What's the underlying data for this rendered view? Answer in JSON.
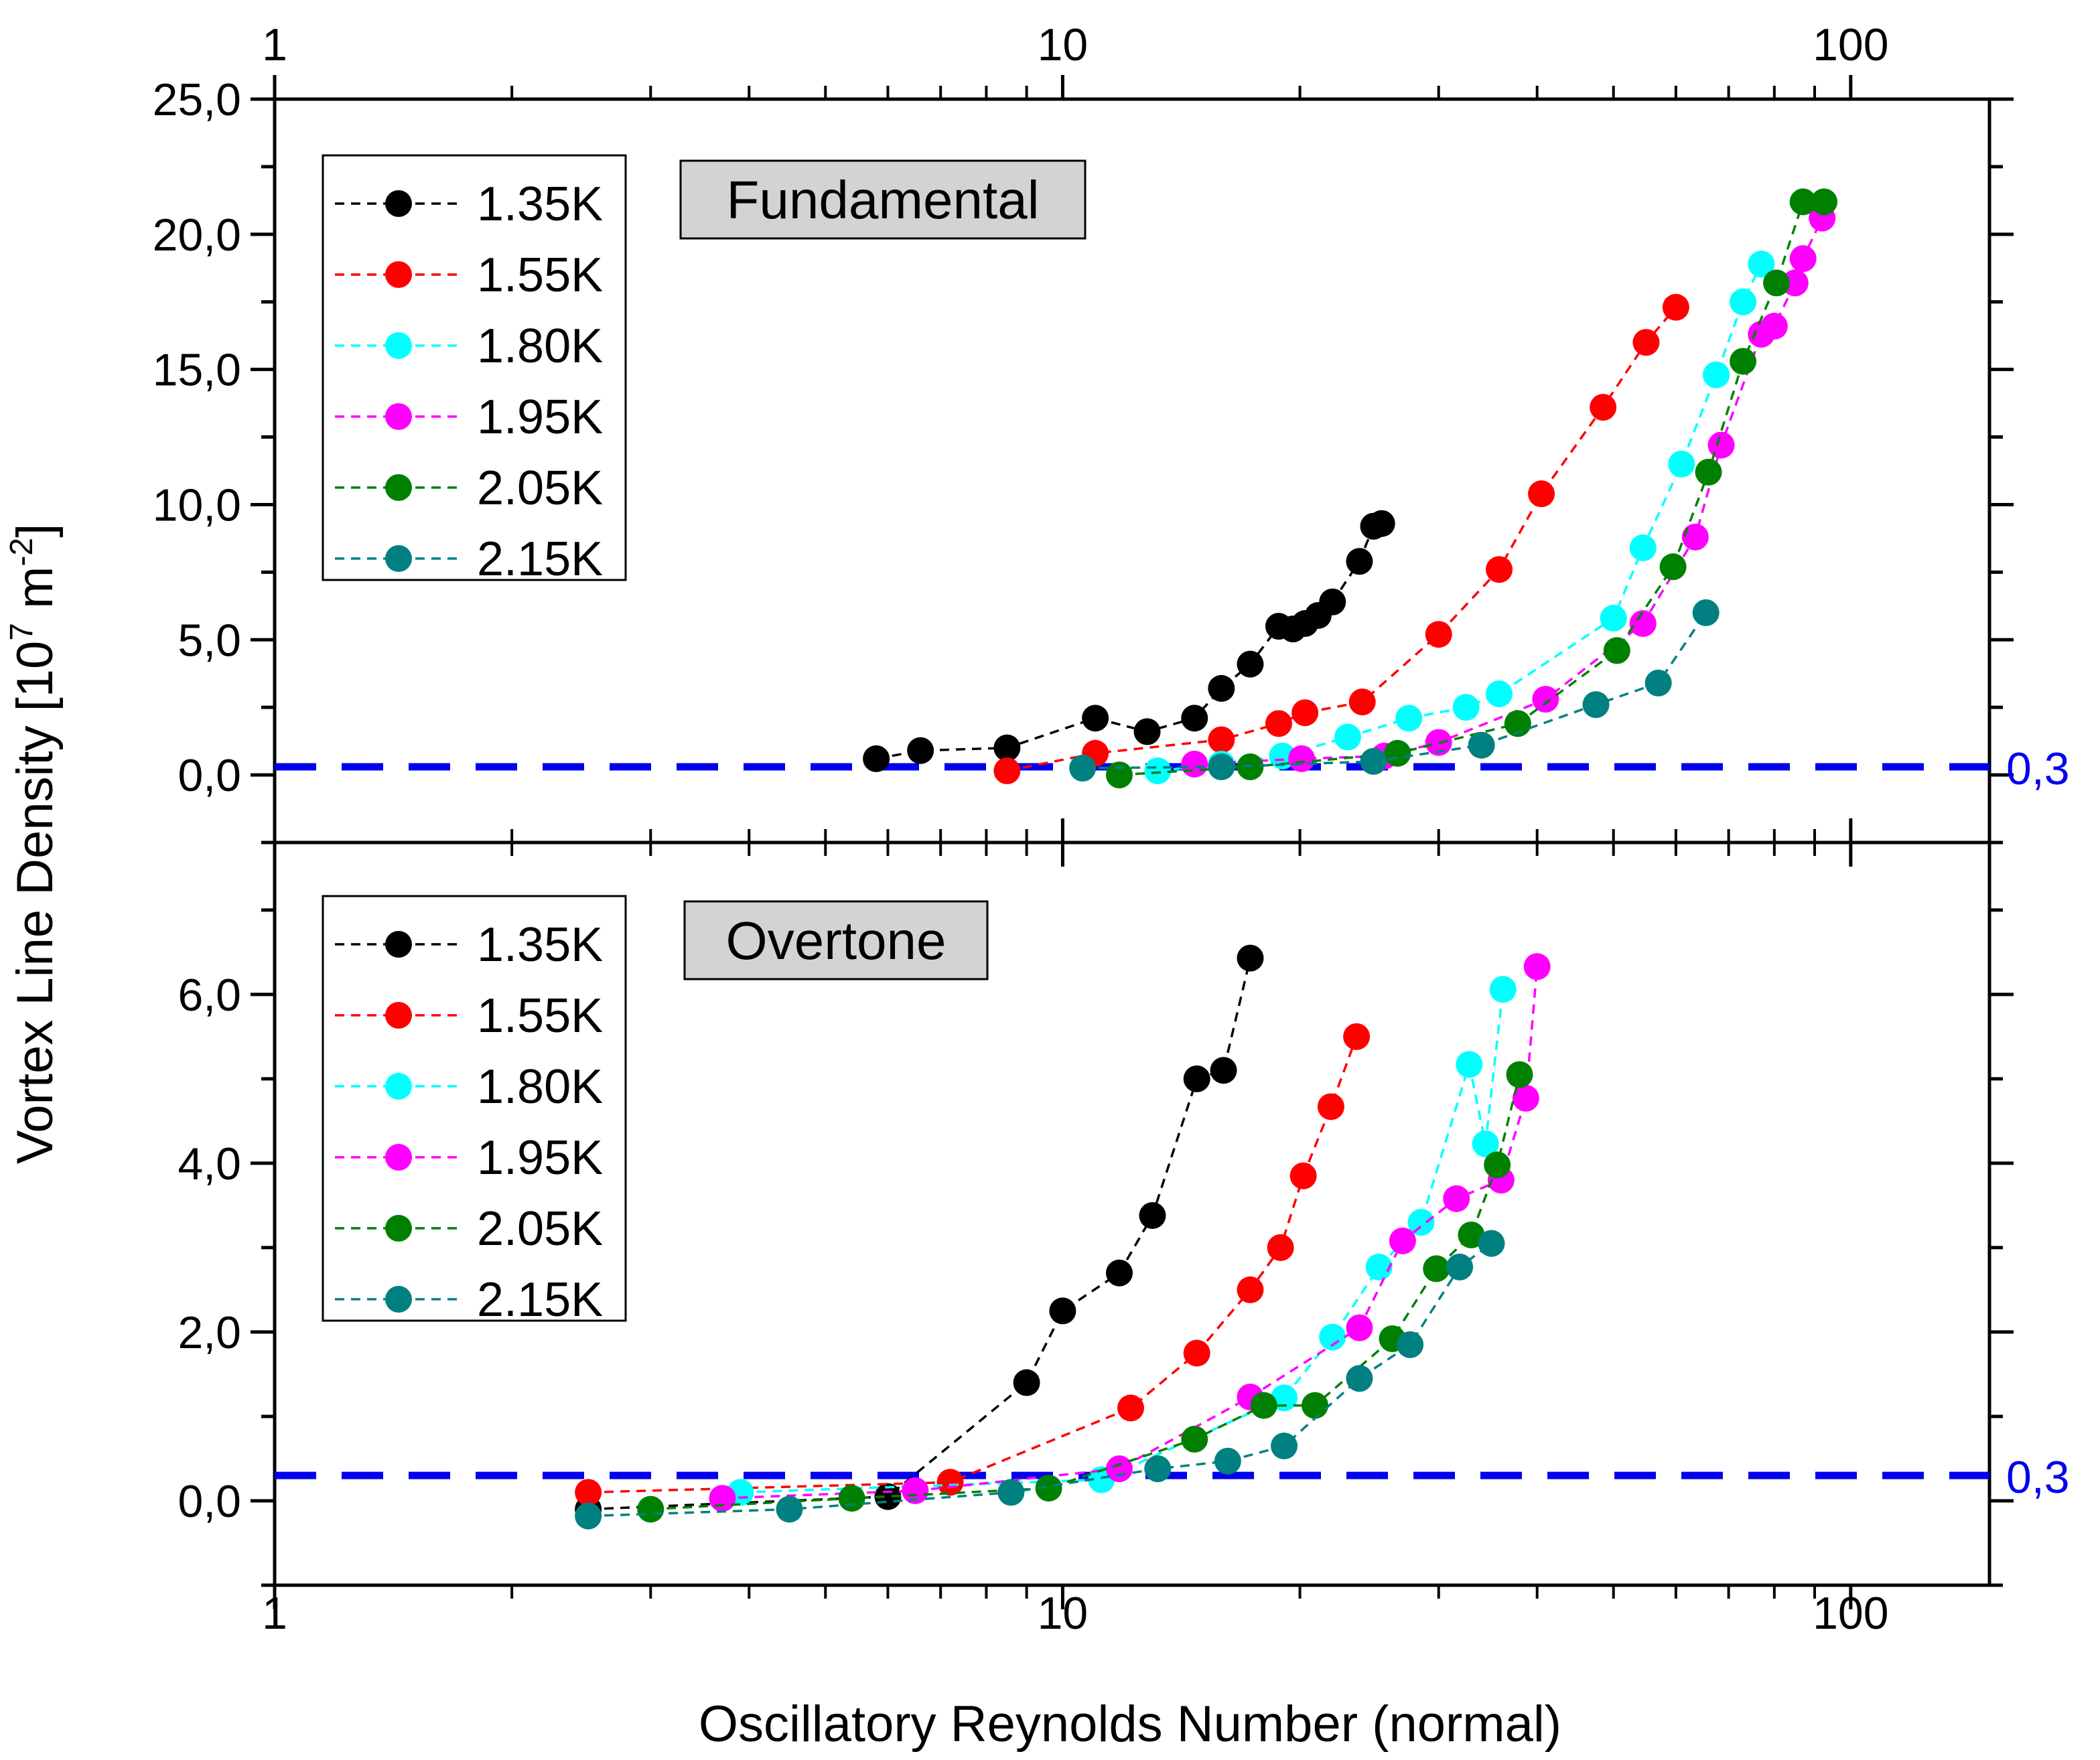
{
  "chart_data": {
    "type": "scatter",
    "x_scale": "log",
    "xlabel": "Oscillatory Reynolds Number (normal)",
    "ylabel_main": "Vortex Line Density [10",
    "ylabel_exp1": "7",
    "ylabel_mid": " m",
    "ylabel_exp2": "-2",
    "ylabel_end": "]",
    "x_tick_labels": [
      "1",
      "10",
      "100"
    ],
    "x_ticks": [
      1,
      10,
      100
    ],
    "xlim": [
      1,
      150
    ],
    "reference_value": 0.3,
    "reference_label": "0,3",
    "colors": {
      "reference": "#0000ee",
      "legend_box": "#d3d3d3"
    },
    "panels": [
      {
        "name": "Fundamental",
        "label": "Fundamental",
        "ylim": [
          -2.5,
          25
        ],
        "y_ticks": [
          0,
          5,
          10,
          15,
          20,
          25
        ],
        "y_tick_labels": [
          "0,0",
          "5,0",
          "10,0",
          "15,0",
          "20,0",
          "25,0"
        ],
        "series": [
          {
            "name": "1.35K",
            "color": "#000000",
            "x": [
              5.8,
              6.6,
              8.5,
              11.0,
              12.8,
              14.7,
              15.9,
              17.3,
              18.8,
              19.6,
              20.3,
              21.1,
              22.0,
              23.8,
              24.8,
              25.4
            ],
            "y": [
              0.6,
              0.9,
              1.0,
              2.1,
              1.6,
              2.1,
              3.2,
              4.1,
              5.5,
              5.4,
              5.6,
              5.9,
              6.4,
              7.9,
              9.2,
              9.3
            ]
          },
          {
            "name": "1.55K",
            "color": "#ff0000",
            "x": [
              8.5,
              11.0,
              15.9,
              18.8,
              20.3,
              24.0,
              30.0,
              35.8,
              40.5,
              48.5,
              55.0,
              60.0
            ],
            "y": [
              0.15,
              0.8,
              1.3,
              1.9,
              2.3,
              2.7,
              5.2,
              7.6,
              10.4,
              13.6,
              16.0,
              17.3
            ]
          },
          {
            "name": "1.80K",
            "color": "#00ffff",
            "x": [
              13.2,
              15.9,
              19.0,
              23.0,
              27.5,
              32.5,
              35.8,
              50.0,
              54.5,
              61.0,
              67.5,
              73.0,
              77.0
            ],
            "y": [
              0.15,
              0.4,
              0.7,
              1.4,
              2.1,
              2.5,
              3.0,
              5.8,
              8.4,
              11.5,
              14.8,
              17.5,
              18.9
            ]
          },
          {
            "name": "1.95K",
            "color": "#ff00ff",
            "x": [
              14.7,
              20.1,
              25.6,
              30.0,
              41.0,
              54.5,
              63.5,
              68.5,
              77.0,
              80.0,
              85.0,
              87.0,
              92.0
            ],
            "y": [
              0.4,
              0.6,
              0.7,
              1.2,
              2.8,
              5.6,
              8.8,
              12.2,
              16.3,
              16.6,
              18.2,
              19.1,
              20.6
            ]
          },
          {
            "name": "2.05K",
            "color": "#008000",
            "x": [
              11.8,
              17.3,
              26.6,
              37.8,
              50.5,
              59.5,
              66.0,
              73.0,
              80.5,
              87.0,
              92.5
            ],
            "y": [
              0.0,
              0.3,
              0.8,
              1.9,
              4.6,
              7.7,
              11.2,
              15.3,
              18.2,
              21.2,
              21.2
            ]
          },
          {
            "name": "2.15K",
            "color": "#008080",
            "x": [
              10.6,
              15.9,
              24.8,
              34.0,
              47.5,
              57.0,
              65.5
            ],
            "y": [
              0.25,
              0.3,
              0.5,
              1.1,
              2.6,
              3.4,
              6.0
            ]
          }
        ]
      },
      {
        "name": "Overtone",
        "label": "Overtone",
        "ylim": [
          -1.0,
          7.8
        ],
        "y_ticks": [
          0,
          2,
          4,
          6
        ],
        "y_tick_labels": [
          "0,0",
          "2,0",
          "4,0",
          "6,0"
        ],
        "series": [
          {
            "name": "1.35K",
            "color": "#000000",
            "x": [
              2.5,
              6.0,
              9.0,
              10.0,
              11.8,
              13.0,
              14.8,
              16.0,
              17.3
            ],
            "y": [
              -0.1,
              0.05,
              1.4,
              2.25,
              2.7,
              3.38,
              5.0,
              5.1,
              6.43
            ]
          },
          {
            "name": "1.55K",
            "color": "#ff0000",
            "x": [
              2.5,
              7.2,
              12.2,
              14.8,
              17.3,
              18.9,
              20.2,
              21.9,
              23.6
            ],
            "y": [
              0.1,
              0.22,
              1.1,
              1.75,
              2.5,
              3.0,
              3.85,
              4.67,
              5.5
            ]
          },
          {
            "name": "1.80K",
            "color": "#00ffff",
            "x": [
              3.9,
              11.2,
              19.1,
              22.0,
              25.2,
              28.5,
              32.8,
              34.4,
              36.2
            ],
            "y": [
              0.1,
              0.25,
              1.22,
              1.94,
              2.77,
              3.3,
              5.17,
              4.23,
              6.06
            ]
          },
          {
            "name": "1.95K",
            "color": "#ff00ff",
            "x": [
              3.7,
              6.5,
              11.8,
              17.3,
              23.8,
              27.0,
              31.6,
              36.0,
              38.7,
              40.0
            ],
            "y": [
              0.03,
              0.12,
              0.38,
              1.23,
              2.05,
              3.08,
              3.58,
              3.8,
              4.77,
              6.33
            ]
          },
          {
            "name": "2.05K",
            "color": "#008000",
            "x": [
              3.0,
              5.4,
              9.6,
              14.7,
              18.0,
              20.9,
              26.2,
              29.8,
              33.0,
              35.6,
              38.0
            ],
            "y": [
              -0.1,
              0.03,
              0.15,
              0.73,
              1.13,
              1.13,
              1.92,
              2.75,
              3.15,
              3.98,
              5.05
            ]
          },
          {
            "name": "2.15K",
            "color": "#008080",
            "x": [
              2.5,
              4.5,
              8.6,
              13.2,
              16.2,
              19.1,
              23.8,
              27.6,
              31.9,
              35.0
            ],
            "y": [
              -0.18,
              -0.1,
              0.1,
              0.38,
              0.47,
              0.65,
              1.45,
              1.85,
              2.77,
              3.05
            ]
          }
        ]
      }
    ]
  }
}
